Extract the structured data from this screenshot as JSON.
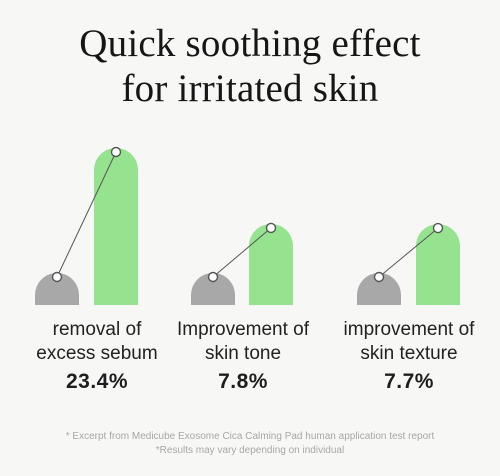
{
  "title_line1": "Quick soothing effect",
  "title_line2": "for irritated skin",
  "colors": {
    "before": "#a8a8a8",
    "after": "#95e38f",
    "marker": "#555555"
  },
  "chart_data": {
    "type": "bar",
    "categories": [
      {
        "label_line1": "removal of",
        "label_line2": "excess sebum",
        "value_label": "23.4%"
      },
      {
        "label_line1": "Improvement of",
        "label_line2": "skin tone",
        "value_label": "7.8%"
      },
      {
        "label_line1": "improvement of",
        "label_line2": "skin texture",
        "value_label": "7.7%"
      }
    ],
    "values": [
      23.4,
      7.8,
      7.7
    ]
  },
  "footnote_line1": "* Excerpt from Medicube Exosome Cica Calming Pad human application test report",
  "footnote_line2": "*Results may vary depending on individual"
}
